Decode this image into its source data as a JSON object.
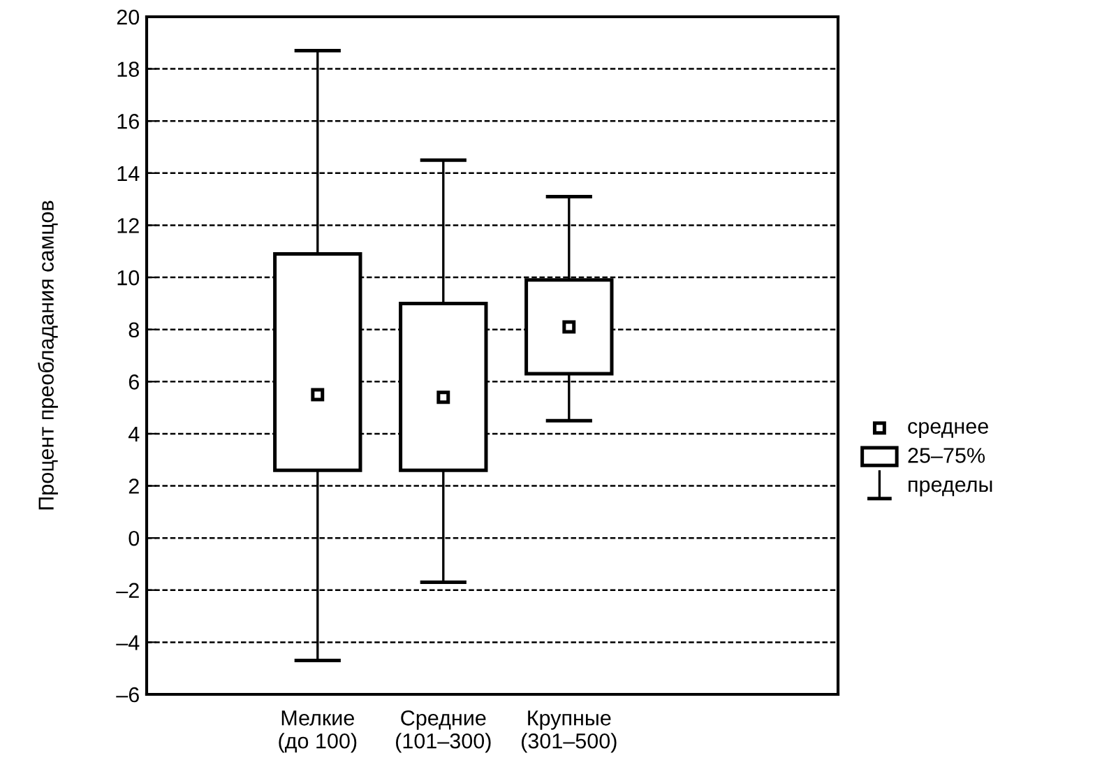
{
  "chart_data": {
    "type": "box",
    "ylabel": "Процент преобладания самцов",
    "categories": [
      "Мелкие\n(до 100)",
      "Средние\n(101–300)",
      "Крупные\n(301–500)"
    ],
    "boxes": [
      {
        "low": -4.7,
        "q1": 2.6,
        "q3": 10.9,
        "high": 18.7,
        "mean": 5.5
      },
      {
        "low": -1.7,
        "q1": 2.6,
        "q3": 9.0,
        "high": 14.5,
        "mean": 5.4
      },
      {
        "low": 4.5,
        "q1": 6.3,
        "q3": 9.9,
        "high": 13.1,
        "mean": 8.1
      }
    ],
    "color": "#ffffff",
    "ylim": [
      -6,
      20
    ],
    "yticks": [
      {
        "value": -6,
        "label": "–6"
      },
      {
        "value": -4,
        "label": "–4"
      },
      {
        "value": -2,
        "label": "–2"
      },
      0,
      2,
      4,
      6,
      8,
      10,
      12,
      14,
      16,
      18,
      20
    ],
    "grid": "y",
    "line_style": "dashed",
    "marker": "square",
    "annotations": [
      "среднее",
      "25–75%",
      "пределы"
    ]
  }
}
